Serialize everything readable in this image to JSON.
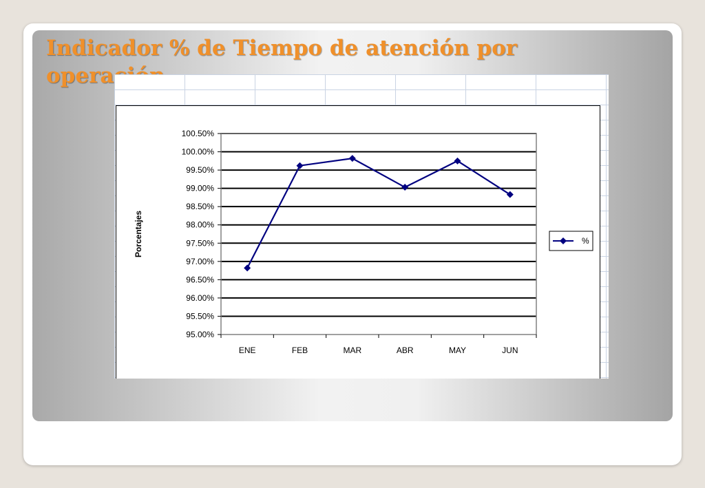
{
  "slide": {
    "title": "Indicador % de Tiempo de atención por operación"
  },
  "colors": {
    "title": "#f0902a",
    "series": "#000080",
    "gridline": "#000000"
  },
  "chart_data": {
    "type": "line",
    "title": "",
    "xlabel": "",
    "ylabel": "Porcentajes",
    "categories": [
      "ENE",
      "FEB",
      "MAR",
      "ABR",
      "MAY",
      "JUN"
    ],
    "series": [
      {
        "name": "%",
        "values": [
          96.82,
          99.62,
          99.82,
          99.03,
          99.75,
          98.83
        ]
      }
    ],
    "ylim": [
      95.0,
      100.5
    ],
    "ytick_step": 0.5,
    "ytick_labels": [
      "95.00%",
      "95.50%",
      "96.00%",
      "96.50%",
      "97.00%",
      "97.50%",
      "98.00%",
      "98.50%",
      "99.00%",
      "99.50%",
      "100.00%",
      "100.50%"
    ],
    "grid": true,
    "legend": "right",
    "marker": "diamond"
  }
}
